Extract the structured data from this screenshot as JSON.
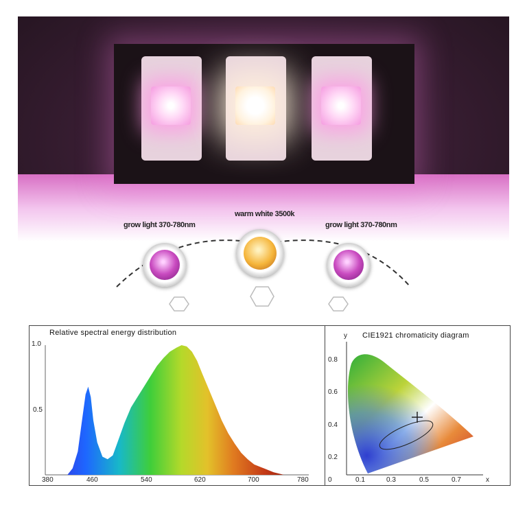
{
  "labels": {
    "left": "grow light 370-780nm",
    "center": "warm white 3500k",
    "right": "grow light 370-780nm"
  },
  "colors": {
    "grow_light": "#c94bc0",
    "warm_white": "#f5b53a",
    "background_glow": "#f3c5ee"
  },
  "spectrum": {
    "title": "Relative spectral energy distribution",
    "y_ticks": [
      "1.0",
      "0.5"
    ],
    "x_ticks": [
      "380",
      "460",
      "540",
      "620",
      "700",
      "780"
    ],
    "x_range": [
      380,
      780
    ],
    "y_range": [
      0,
      1.0
    ],
    "profile": [
      [
        412,
        0
      ],
      [
        420,
        0.05
      ],
      [
        428,
        0.18
      ],
      [
        434,
        0.4
      ],
      [
        440,
        0.62
      ],
      [
        444,
        0.68
      ],
      [
        448,
        0.6
      ],
      [
        452,
        0.42
      ],
      [
        458,
        0.25
      ],
      [
        466,
        0.14
      ],
      [
        474,
        0.12
      ],
      [
        482,
        0.15
      ],
      [
        490,
        0.26
      ],
      [
        500,
        0.4
      ],
      [
        510,
        0.52
      ],
      [
        520,
        0.6
      ],
      [
        530,
        0.68
      ],
      [
        540,
        0.76
      ],
      [
        550,
        0.84
      ],
      [
        560,
        0.9
      ],
      [
        570,
        0.95
      ],
      [
        580,
        0.98
      ],
      [
        588,
        1.0
      ],
      [
        596,
        0.99
      ],
      [
        604,
        0.95
      ],
      [
        612,
        0.88
      ],
      [
        620,
        0.78
      ],
      [
        630,
        0.66
      ],
      [
        640,
        0.54
      ],
      [
        650,
        0.42
      ],
      [
        660,
        0.32
      ],
      [
        670,
        0.24
      ],
      [
        680,
        0.17
      ],
      [
        690,
        0.12
      ],
      [
        700,
        0.08
      ],
      [
        715,
        0.05
      ],
      [
        730,
        0.02
      ],
      [
        746,
        0
      ]
    ]
  },
  "cie": {
    "title": "CIE1921 chromaticity diagram",
    "y_axis": "y",
    "x_axis": "x",
    "y_ticks": [
      "0.8",
      "0.6",
      "0.4",
      "0.2",
      "0"
    ],
    "x_ticks": [
      "0.1",
      "0.3",
      "0.5",
      "0.7"
    ]
  }
}
